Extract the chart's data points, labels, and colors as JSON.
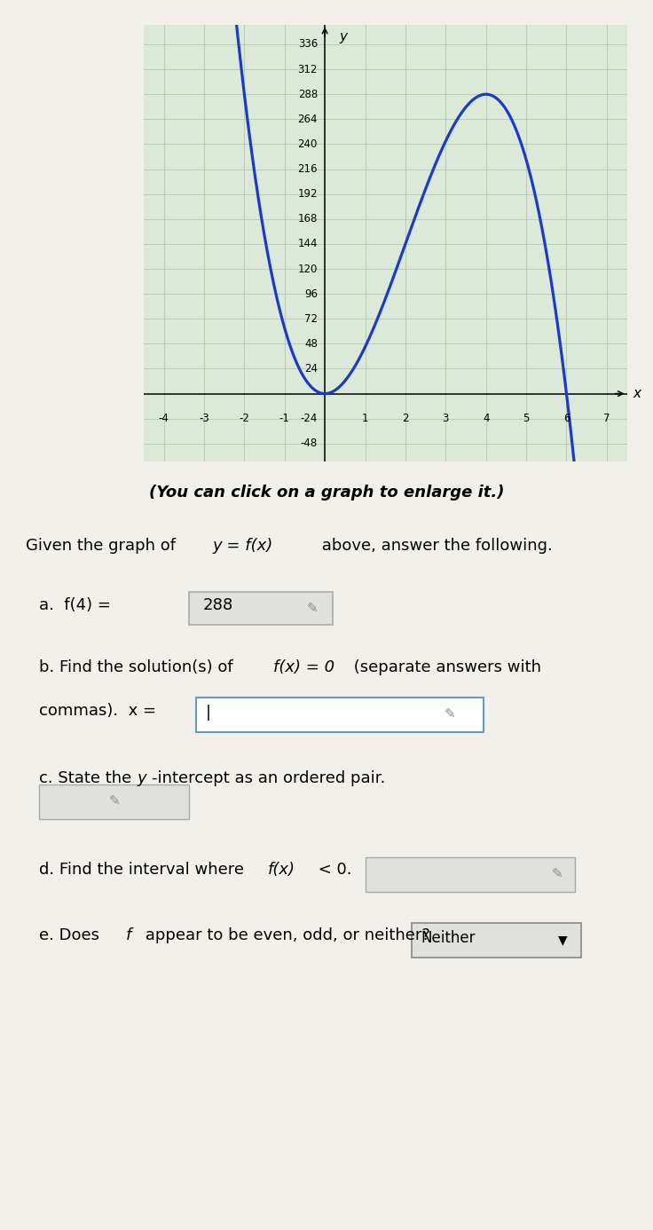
{
  "graph_bg": "#dce8d8",
  "paper_bg": "#f2f0eb",
  "curve_color": "#1a3acc",
  "curve_linewidth": 2.3,
  "xlim": [
    -4.5,
    7.5
  ],
  "ylim": [
    -65,
    355
  ],
  "xticks": [
    -4,
    -3,
    -2,
    -1,
    1,
    2,
    3,
    4,
    5,
    6,
    7
  ],
  "yticks": [
    -48,
    -24,
    24,
    48,
    72,
    96,
    120,
    144,
    168,
    192,
    216,
    240,
    264,
    288,
    312,
    336
  ],
  "x_start": -4.2,
  "x_end": 7.1,
  "func_coeffs": [
    0,
    0,
    54,
    -9
  ],
  "grid_color": "#b0c8b0",
  "grid_linewidth": 0.6,
  "axis_label_x": "x",
  "axis_label_y": "y",
  "click_text": "(You can click on a graph to enlarge it.)",
  "given_text": "Given the graph of y = f(x) above, answer the following.",
  "a_text": "a.  f(4) =",
  "a_ans": "288",
  "b_text1": "b. Find the solution(s) of f(x) = 0 (separate answers with",
  "b_text2": "commas). x =",
  "c_text": "c. State the y-intercept as an ordered pair.",
  "d_text": "d. Find the interval where f(x) < 0.",
  "e_text": "e. Does f appear to be even, odd, or neither?",
  "e_ans": "Neither"
}
